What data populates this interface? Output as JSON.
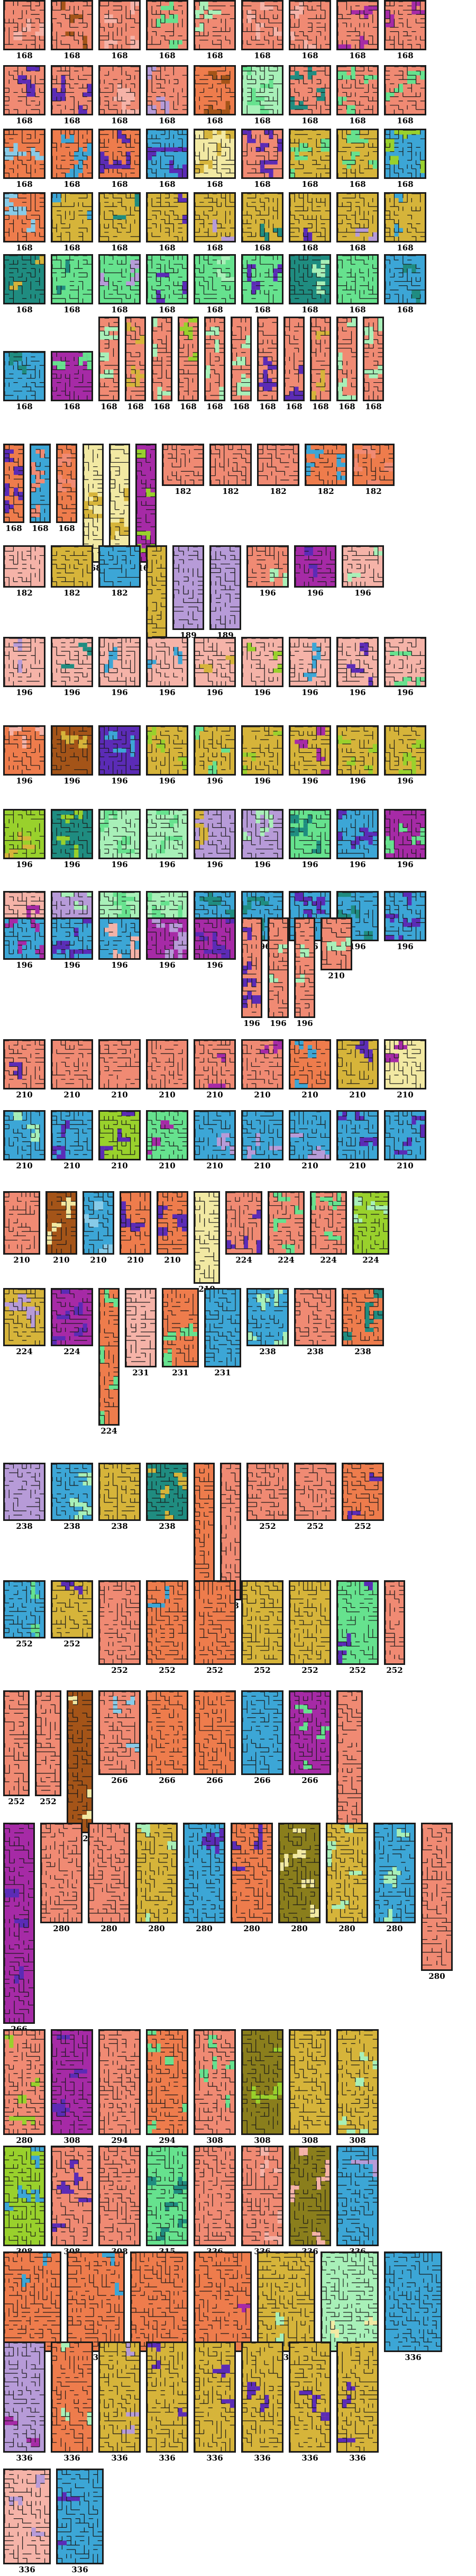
{
  "palette": {
    "salmon": "#f08a73",
    "pink": "#f5b3a8",
    "orange": "#ee7c4c",
    "gold": "#d6b43a",
    "blue": "#3ca6d6",
    "green": "#66e28e",
    "mint": "#a8f0b8",
    "magenta": "#a62aa6",
    "teal": "#1f8c80",
    "brown": "#a45418",
    "lime": "#99d12c",
    "cream": "#f2e9a3",
    "lightblue": "#87cbe8",
    "purple": "#5b2bb6",
    "olive": "#8a7e1c",
    "lavender": "#b79bd8"
  },
  "rows": [
    {
      "labels": [
        "168",
        "168",
        "168",
        "168",
        "168",
        "168",
        "168",
        "168",
        "168",
        "168"
      ],
      "colors": [
        "salmon",
        "salmon",
        "salmon",
        "salmon",
        "salmon",
        "salmon",
        "salmon",
        "salmon",
        "salmon",
        "salmon"
      ],
      "accents": [
        "pink",
        "brown",
        "pink",
        "green",
        "mint",
        "pink",
        "pink",
        "magenta",
        "magenta",
        "magenta"
      ]
    },
    {
      "labels": [
        "168",
        "168",
        "168",
        "168",
        "168",
        "168",
        "168",
        "168",
        "168",
        "168"
      ],
      "colors": [
        "salmon",
        "salmon",
        "salmon",
        "salmon",
        "orange",
        "mint",
        "salmon",
        "salmon",
        "salmon",
        "salmon"
      ],
      "accents": [
        "purple",
        "purple",
        "pink",
        "lavender",
        "brown",
        "green",
        "teal",
        "green",
        "green",
        "teal"
      ]
    },
    {
      "labels": [
        "168",
        "168",
        "168",
        "168",
        "168",
        "168",
        "168",
        "168",
        "168",
        "168"
      ],
      "colors": [
        "orange",
        "orange",
        "orange",
        "blue",
        "cream",
        "salmon",
        "gold",
        "gold",
        "blue",
        "gold"
      ],
      "accents": [
        "lightblue",
        "blue",
        "purple",
        "purple",
        "gold",
        "purple",
        "green",
        "green",
        "lime",
        "green"
      ]
    },
    {
      "labels": [
        "168",
        "168",
        "168",
        "168",
        "168",
        "168",
        "168",
        "168",
        "168",
        "168"
      ],
      "colors": [
        "orange",
        "gold",
        "gold",
        "gold",
        "gold",
        "gold",
        "gold",
        "gold",
        "gold",
        "gold"
      ],
      "accents": [
        "lightblue",
        "blue",
        "teal",
        "purple",
        "lavender",
        "teal",
        "purple",
        "lavender",
        "blue",
        "blue"
      ]
    },
    {
      "labels": [
        "168",
        "168",
        "168",
        "168",
        "168",
        "168",
        "168",
        "168",
        "168",
        "168"
      ],
      "colors": [
        "teal",
        "green",
        "green",
        "green",
        "green",
        "green",
        "teal",
        "green",
        "blue",
        "blue"
      ],
      "accents": [
        "gold",
        "teal",
        "lavender",
        "purple",
        "mint",
        "purple",
        "mint",
        "green",
        "teal",
        "mint"
      ]
    },
    {
      "labels": [
        "168",
        "168",
        "168",
        "168",
        "168",
        "168",
        "168",
        "168",
        "168",
        "168",
        "168",
        "168",
        "168"
      ],
      "colors": [
        "blue",
        "magenta",
        "salmon",
        "salmon",
        "salmon",
        "salmon",
        "salmon",
        "salmon",
        "salmon",
        "salmon",
        "salmon",
        "salmon",
        "salmon"
      ],
      "accents": [
        "teal",
        "green",
        "mint",
        "gold",
        "mint",
        "lime",
        "mint",
        "mint",
        "purple",
        "purple",
        "gold",
        "mint",
        "mint"
      ]
    },
    {
      "labels": [
        "168",
        "168",
        "168",
        "168",
        "168",
        "168",
        "182",
        "182",
        "182",
        "182",
        "182"
      ],
      "colors": [
        "orange",
        "blue",
        "orange",
        "cream",
        "cream",
        "magenta",
        "salmon",
        "salmon",
        "salmon",
        "orange",
        "orange"
      ],
      "accents": [
        "purple",
        "salmon",
        "salmon",
        "gold",
        "gold",
        "lime",
        "salmon",
        "salmon",
        "salmon",
        "blue",
        "salmon"
      ]
    },
    {
      "labels": [
        "182",
        "182",
        "182",
        "182",
        "189",
        "189",
        "196",
        "196",
        "196"
      ],
      "colors": [
        "pink",
        "gold",
        "blue",
        "gold",
        "lavender",
        "lavender",
        "salmon",
        "magenta",
        "pink"
      ],
      "accents": [
        "pink",
        "gold",
        "blue",
        "gold",
        "lavender",
        "lavender",
        "mint",
        "purple",
        "mint"
      ]
    },
    {
      "labels": [
        "196",
        "196",
        "196",
        "196",
        "196",
        "196",
        "196",
        "196",
        "196",
        "196"
      ],
      "colors": [
        "pink",
        "pink",
        "pink",
        "pink",
        "pink",
        "pink",
        "pink",
        "pink",
        "pink",
        "pink"
      ],
      "accents": [
        "lavender",
        "teal",
        "blue",
        "blue",
        "gold",
        "lime",
        "blue",
        "purple",
        "green",
        "teal"
      ]
    },
    {
      "labels": [
        "196",
        "196",
        "196",
        "196",
        "196",
        "196",
        "196",
        "196",
        "196",
        "196"
      ],
      "colors": [
        "orange",
        "brown",
        "purple",
        "gold",
        "gold",
        "gold",
        "gold",
        "gold",
        "gold",
        "gold"
      ],
      "accents": [
        "pink",
        "gold",
        "blue",
        "lime",
        "green",
        "lime",
        "magenta",
        "lime",
        "lime",
        "lime"
      ]
    },
    {
      "labels": [
        "196",
        "196",
        "196",
        "196",
        "196",
        "196",
        "196",
        "196",
        "196",
        "196"
      ],
      "colors": [
        "lime",
        "teal",
        "mint",
        "mint",
        "lavender",
        "lavender",
        "green",
        "blue",
        "magenta",
        "blue"
      ],
      "accents": [
        "gold",
        "lime",
        "green",
        "green",
        "gold",
        "mint",
        "teal",
        "purple",
        "green",
        "green"
      ]
    },
    {
      "labels": [
        "196",
        "196",
        "196",
        "196",
        "196",
        "196",
        "196",
        "196",
        "196",
        "196"
      ],
      "colors": [
        "pink",
        "lavender",
        "mint",
        "mint",
        "blue",
        "blue",
        "blue",
        "blue",
        "blue",
        "blue"
      ],
      "accents": [
        "magenta",
        "mint",
        "green",
        "green",
        "teal",
        "teal",
        "purple",
        "teal",
        "purple",
        "magenta"
      ]
    },
    {
      "labels": [
        "196",
        "196",
        "196",
        "196",
        "196",
        "196",
        "196",
        "196",
        "210"
      ],
      "colors": [
        "blue",
        "blue",
        "blue",
        "magenta",
        "magenta",
        "salmon",
        "salmon",
        "salmon",
        "salmon"
      ],
      "accents": [
        "magenta",
        "purple",
        "pink",
        "lavender",
        "purple",
        "purple",
        "mint",
        "mint",
        "mint"
      ]
    },
    {
      "labels": [
        "210",
        "210",
        "210",
        "210",
        "210",
        "210",
        "210",
        "210",
        "210"
      ],
      "colors": [
        "salmon",
        "salmon",
        "salmon",
        "salmon",
        "salmon",
        "salmon",
        "orange",
        "gold",
        "cream"
      ],
      "accents": [
        "purple",
        "salmon",
        "salmon",
        "salmon",
        "magenta",
        "magenta",
        "blue",
        "purple",
        "magenta"
      ]
    },
    {
      "labels": [
        "210",
        "210",
        "210",
        "210",
        "210",
        "210",
        "210",
        "210",
        "210"
      ],
      "colors": [
        "blue",
        "blue",
        "lime",
        "green",
        "blue",
        "blue",
        "blue",
        "blue",
        "blue"
      ],
      "accents": [
        "mint",
        "purple",
        "purple",
        "magenta",
        "lavender",
        "lavender",
        "lavender",
        "purple",
        "purple"
      ]
    },
    {
      "labels": [
        "210",
        "210",
        "210",
        "210",
        "210",
        "210",
        "224",
        "224",
        "224",
        "224"
      ],
      "colors": [
        "salmon",
        "brown",
        "blue",
        "orange",
        "orange",
        "cream",
        "salmon",
        "salmon",
        "salmon",
        "lime"
      ],
      "accents": [
        "salmon",
        "cream",
        "lightblue",
        "purple",
        "purple",
        "cream",
        "purple",
        "green",
        "green",
        "mint"
      ]
    },
    {
      "labels": [
        "224",
        "224",
        "224",
        "231",
        "231",
        "231",
        "238",
        "238",
        "238"
      ],
      "colors": [
        "gold",
        "magenta",
        "orange",
        "pink",
        "orange",
        "blue",
        "blue",
        "salmon",
        "orange"
      ],
      "accents": [
        "lavender",
        "purple",
        "green",
        "pink",
        "green",
        "blue",
        "mint",
        "salmon",
        "teal"
      ]
    },
    {
      "labels": [
        "238",
        "238",
        "238",
        "238",
        "238",
        "238",
        "252",
        "252",
        "252"
      ],
      "colors": [
        "lavender",
        "blue",
        "gold",
        "teal",
        "orange",
        "salmon",
        "salmon",
        "salmon",
        "orange"
      ],
      "accents": [
        "lavender",
        "mint",
        "gold",
        "gold",
        "orange",
        "salmon",
        "salmon",
        "salmon",
        "purple"
      ]
    },
    {
      "labels": [
        "252",
        "252",
        "252",
        "252",
        "252",
        "252",
        "252",
        "252",
        "252"
      ],
      "colors": [
        "blue",
        "gold",
        "salmon",
        "orange",
        "orange",
        "gold",
        "gold",
        "green",
        "salmon"
      ],
      "accents": [
        "green",
        "purple",
        "salmon",
        "blue",
        "orange",
        "gold",
        "gold",
        "purple",
        "salmon"
      ]
    },
    {
      "labels": [
        "252",
        "252",
        "252",
        "266",
        "266",
        "266",
        "266",
        "266",
        "266"
      ],
      "colors": [
        "salmon",
        "salmon",
        "brown",
        "salmon",
        "orange",
        "orange",
        "blue",
        "magenta",
        "salmon"
      ],
      "accents": [
        "salmon",
        "salmon",
        "cream",
        "lightblue",
        "orange",
        "orange",
        "blue",
        "green",
        "salmon"
      ]
    },
    {
      "labels": [
        "266",
        "280",
        "280",
        "280",
        "280",
        "280",
        "280",
        "280",
        "280",
        "280"
      ],
      "colors": [
        "magenta",
        "salmon",
        "salmon",
        "gold",
        "blue",
        "orange",
        "olive",
        "gold",
        "blue",
        "salmon"
      ],
      "accents": [
        "purple",
        "salmon",
        "salmon",
        "mint",
        "purple",
        "purple",
        "cream",
        "mint",
        "mint",
        "salmon"
      ]
    },
    {
      "labels": [
        "280",
        "308",
        "294",
        "294",
        "308",
        "308",
        "308",
        "308"
      ],
      "colors": [
        "salmon",
        "magenta",
        "salmon",
        "orange",
        "salmon",
        "olive",
        "gold",
        "gold"
      ],
      "accents": [
        "lime",
        "purple",
        "salmon",
        "green",
        "green",
        "lime",
        "gold",
        "mint"
      ]
    },
    {
      "labels": [
        "308",
        "308",
        "308",
        "315",
        "336",
        "336",
        "336",
        "336"
      ],
      "colors": [
        "lime",
        "salmon",
        "salmon",
        "green",
        "salmon",
        "salmon",
        "olive",
        "blue"
      ],
      "accents": [
        "blue",
        "purple",
        "salmon",
        "teal",
        "salmon",
        "pink",
        "pink",
        "lavender"
      ]
    },
    {
      "labels": [
        "336",
        "336",
        "336",
        "336",
        "336",
        "336",
        "336"
      ],
      "colors": [
        "orange",
        "orange",
        "orange",
        "orange",
        "gold",
        "mint",
        "blue"
      ],
      "accents": [
        "blue",
        "blue",
        "orange",
        "magenta",
        "mint",
        "cream",
        "blue"
      ]
    },
    {
      "labels": [
        "336",
        "336",
        "336",
        "336",
        "336",
        "336",
        "336",
        "336"
      ],
      "colors": [
        "lavender",
        "orange",
        "gold",
        "gold",
        "gold",
        "gold",
        "gold",
        "gold"
      ],
      "accents": [
        "magenta",
        "mint",
        "lavender",
        "purple",
        "purple",
        "purple",
        "purple",
        "purple"
      ]
    },
    {
      "labels": [
        "336",
        "336"
      ],
      "colors": [
        "pink",
        "blue"
      ],
      "accents": [
        "lavender",
        "purple"
      ]
    }
  ]
}
